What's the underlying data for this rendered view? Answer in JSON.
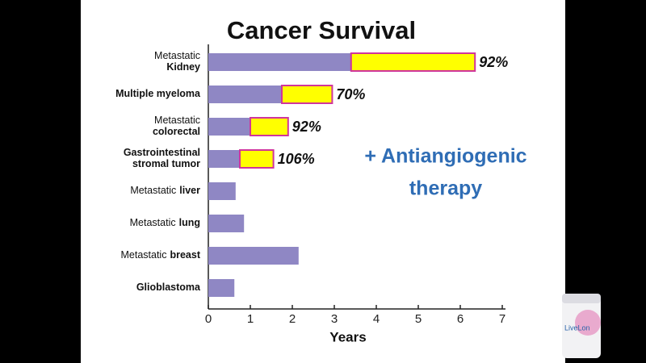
{
  "chart_data": {
    "type": "stacked_barh",
    "title": "Cancer Survival",
    "x_label": "Years",
    "annotation": [
      "+ Antiangiogenic",
      "therapy"
    ],
    "annotation_color": "#2f6db5",
    "categories": [
      [
        [
          {
            "text": "Metastatic",
            "bold": false
          }
        ],
        [
          {
            "text": "Kidney",
            "bold": true
          }
        ]
      ],
      [
        [
          {
            "text": "Multiple myeloma",
            "bold": true
          }
        ]
      ],
      [
        [
          {
            "text": "Metastatic",
            "bold": false
          }
        ],
        [
          {
            "text": "colorectal",
            "bold": true
          }
        ]
      ],
      [
        [
          {
            "text": "Gastrointestinal",
            "bold": true
          }
        ],
        [
          {
            "text": "stromal tumor",
            "bold": true
          }
        ]
      ],
      [
        [
          {
            "text": "Metastatic",
            "bold": false
          },
          {
            "text": "liver",
            "bold": true
          }
        ]
      ],
      [
        [
          {
            "text": "Metastatic",
            "bold": false
          },
          {
            "text": "lung",
            "bold": true
          }
        ]
      ],
      [
        [
          {
            "text": "Metastatic",
            "bold": false
          },
          {
            "text": "breast",
            "bold": true
          }
        ]
      ],
      [
        [
          {
            "text": "Glioblastoma",
            "bold": true
          }
        ]
      ]
    ],
    "series": [
      {
        "color": "#8f87c4",
        "values": [
          3.4,
          1.75,
          1.0,
          0.75,
          0.65,
          0.85,
          2.15,
          0.62
        ]
      },
      {
        "color": "#ffff00",
        "edge_color": "#d0359c",
        "values": [
          2.95,
          1.2,
          0.9,
          0.8,
          null,
          null,
          null,
          null
        ],
        "gain_labels": [
          "92%",
          "70%",
          "92%",
          "106%",
          null,
          null,
          null,
          null
        ]
      }
    ],
    "xlim": [
      0,
      7
    ],
    "xticks": [
      0,
      1,
      2,
      3,
      4,
      5,
      6,
      7
    ],
    "product_label": "LiveLon"
  }
}
